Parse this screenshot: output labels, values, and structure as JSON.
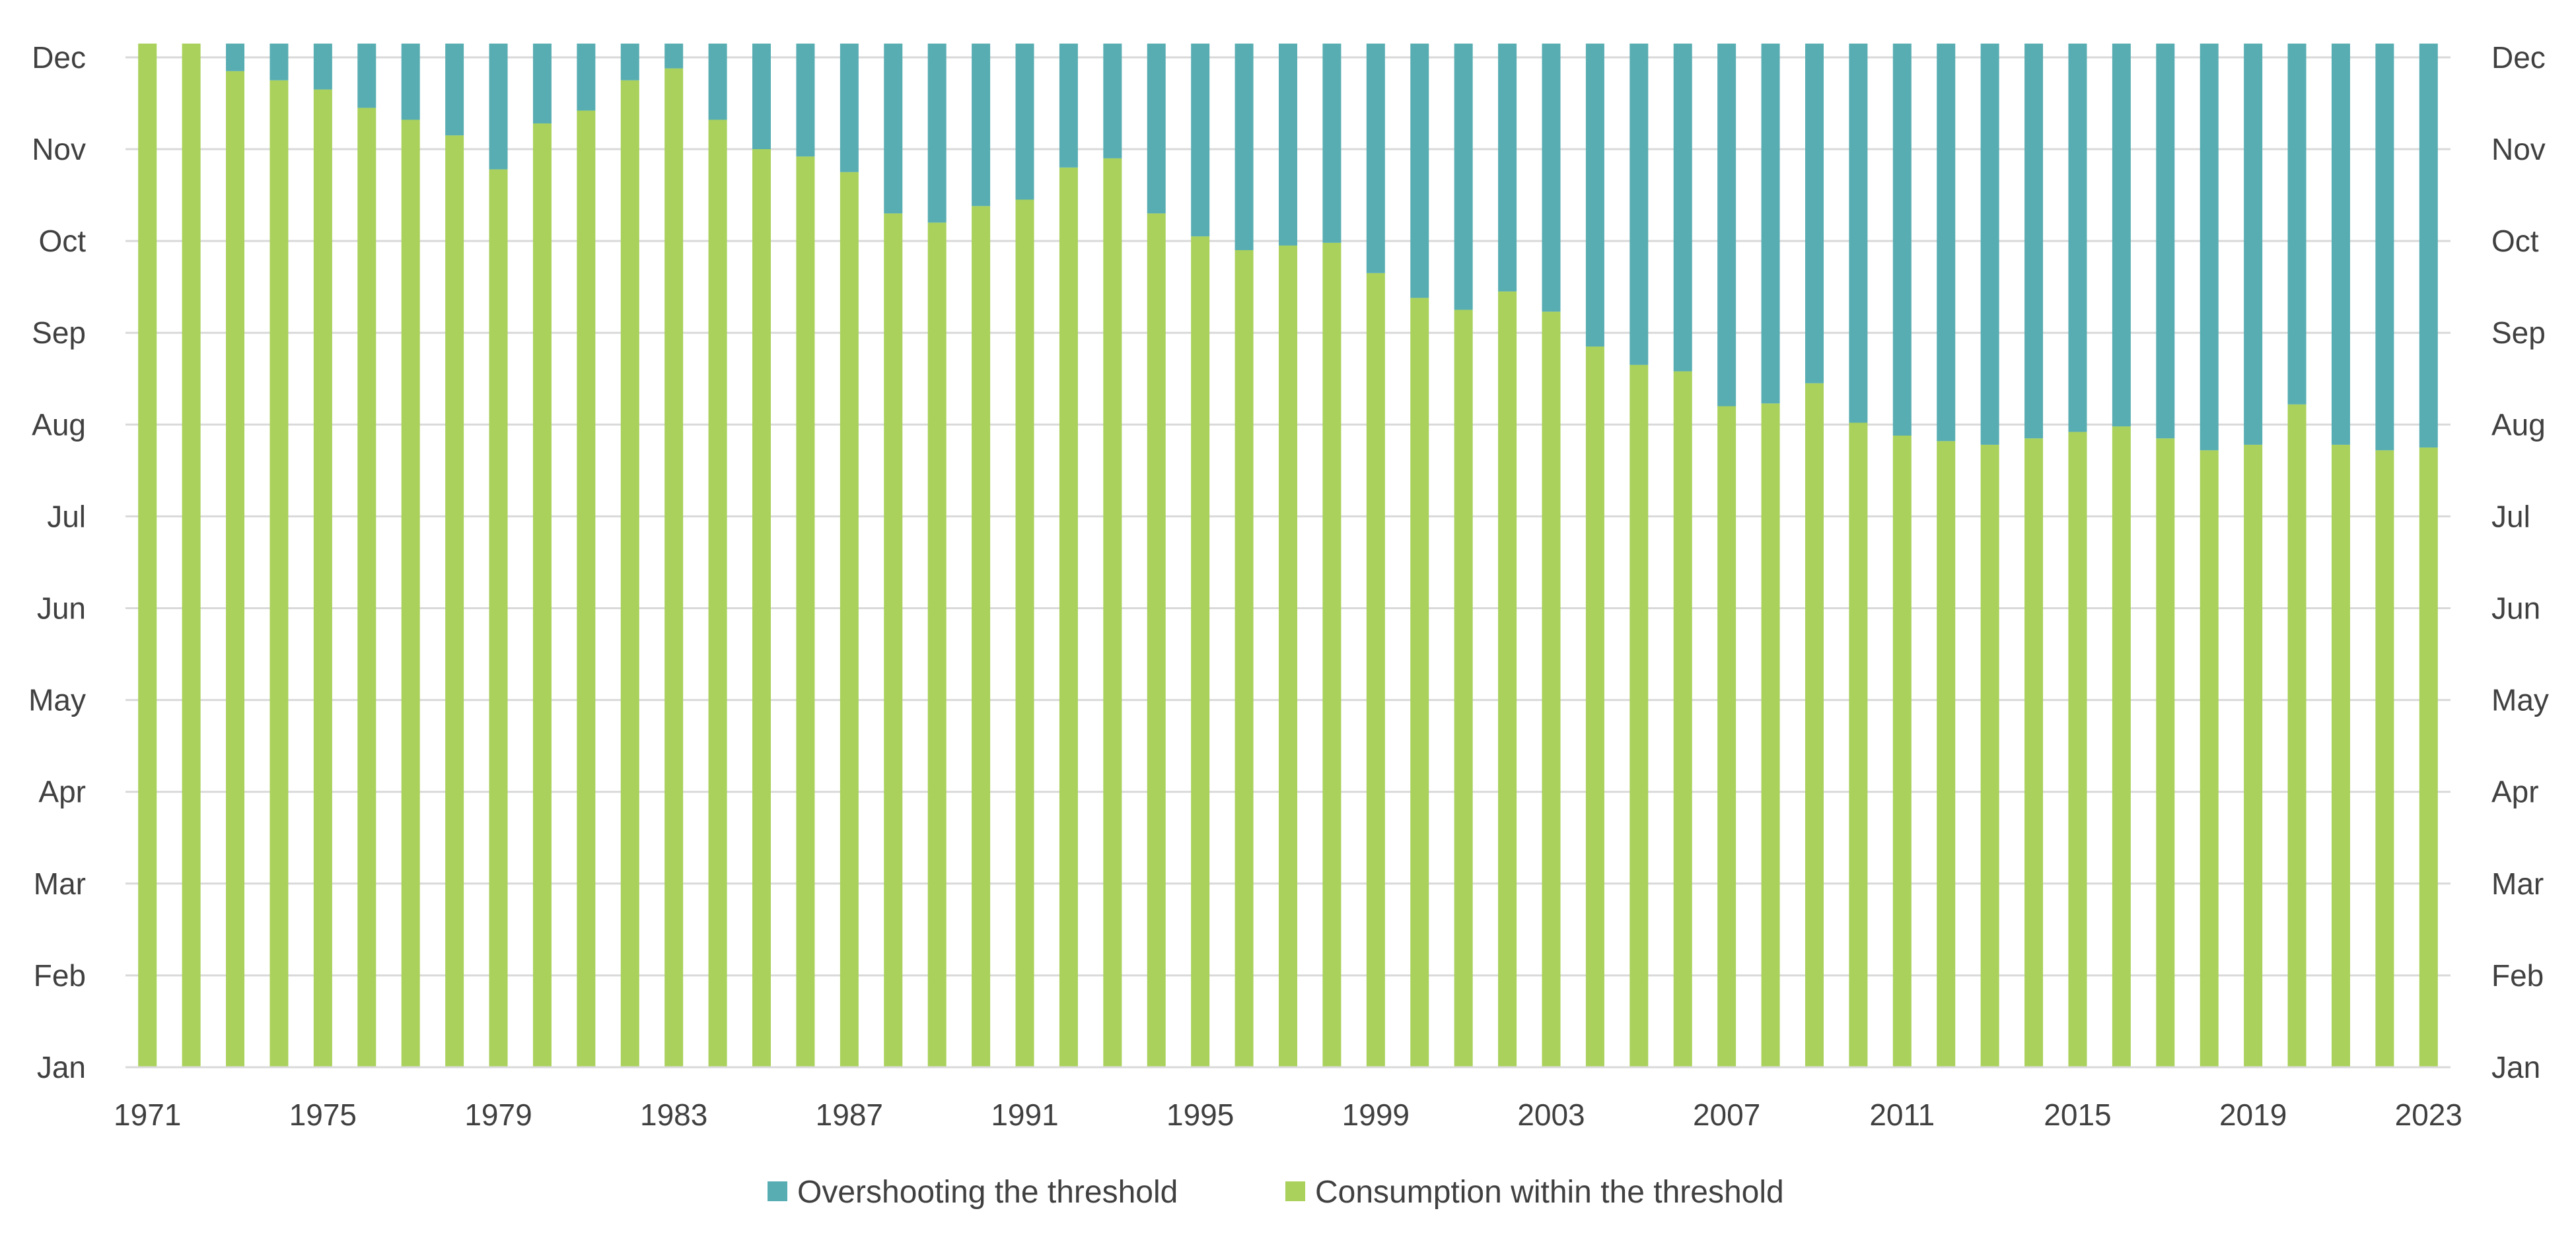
{
  "chart_data": {
    "type": "bar",
    "stacked": true,
    "title": "",
    "xlabel": "",
    "ylabel": "",
    "x": [
      1971,
      1972,
      1973,
      1974,
      1975,
      1976,
      1977,
      1978,
      1979,
      1980,
      1981,
      1982,
      1983,
      1984,
      1985,
      1986,
      1987,
      1988,
      1989,
      1990,
      1991,
      1992,
      1993,
      1994,
      1995,
      1996,
      1997,
      1998,
      1999,
      2000,
      2001,
      2002,
      2003,
      2004,
      2005,
      2006,
      2007,
      2008,
      2009,
      2010,
      2011,
      2012,
      2013,
      2014,
      2015,
      2016,
      2017,
      2018,
      2019,
      2020,
      2021,
      2022,
      2023
    ],
    "x_tick_labels": [
      "1971",
      "1975",
      "1979",
      "1983",
      "1987",
      "1991",
      "1995",
      "1999",
      "2003",
      "2007",
      "2011",
      "2015",
      "2019",
      "2023"
    ],
    "y_tick_labels": [
      "Jan",
      "Feb",
      "Mar",
      "Apr",
      "May",
      "Jun",
      "Jul",
      "Aug",
      "Sep",
      "Oct",
      "Nov",
      "Dec"
    ],
    "y_unit": "months",
    "ylim": [
      0,
      11.2
    ],
    "grid": true,
    "legend_position": "bottom-center",
    "series": [
      {
        "name": "Consumption within the threshold",
        "color": "#a9d15b",
        "values": [
          11.15,
          11.15,
          10.85,
          10.75,
          10.65,
          10.45,
          10.32,
          10.15,
          9.78,
          10.28,
          10.42,
          10.75,
          10.88,
          10.32,
          10.0,
          9.92,
          9.75,
          9.3,
          9.2,
          9.38,
          9.45,
          9.8,
          9.9,
          9.3,
          9.05,
          8.9,
          8.95,
          8.98,
          8.65,
          8.38,
          8.25,
          8.45,
          8.23,
          7.85,
          7.65,
          7.58,
          7.2,
          7.23,
          7.45,
          7.02,
          6.88,
          6.82,
          6.78,
          6.85,
          6.92,
          6.98,
          6.85,
          6.72,
          6.78,
          7.22,
          6.78,
          6.72,
          6.75
        ]
      },
      {
        "name": "Overshooting the threshold",
        "color": "#58adb2",
        "values": [
          0.0,
          0.0,
          0.3,
          0.4,
          0.5,
          0.7,
          0.83,
          1.0,
          1.37,
          0.87,
          0.73,
          0.4,
          0.27,
          0.83,
          1.15,
          1.23,
          1.4,
          1.85,
          1.95,
          1.77,
          1.7,
          1.35,
          1.25,
          1.85,
          2.1,
          2.25,
          2.2,
          2.17,
          2.5,
          2.77,
          2.9,
          2.7,
          2.92,
          3.3,
          3.5,
          3.57,
          3.95,
          3.92,
          3.7,
          4.13,
          4.27,
          4.33,
          4.37,
          4.3,
          4.23,
          4.17,
          4.3,
          4.43,
          4.37,
          3.93,
          4.37,
          4.43,
          4.4
        ]
      }
    ]
  },
  "legend": {
    "items": [
      {
        "label": "Overshooting the threshold",
        "color": "#58adb2"
      },
      {
        "label": "Consumption within the threshold",
        "color": "#a9d15b"
      }
    ]
  }
}
